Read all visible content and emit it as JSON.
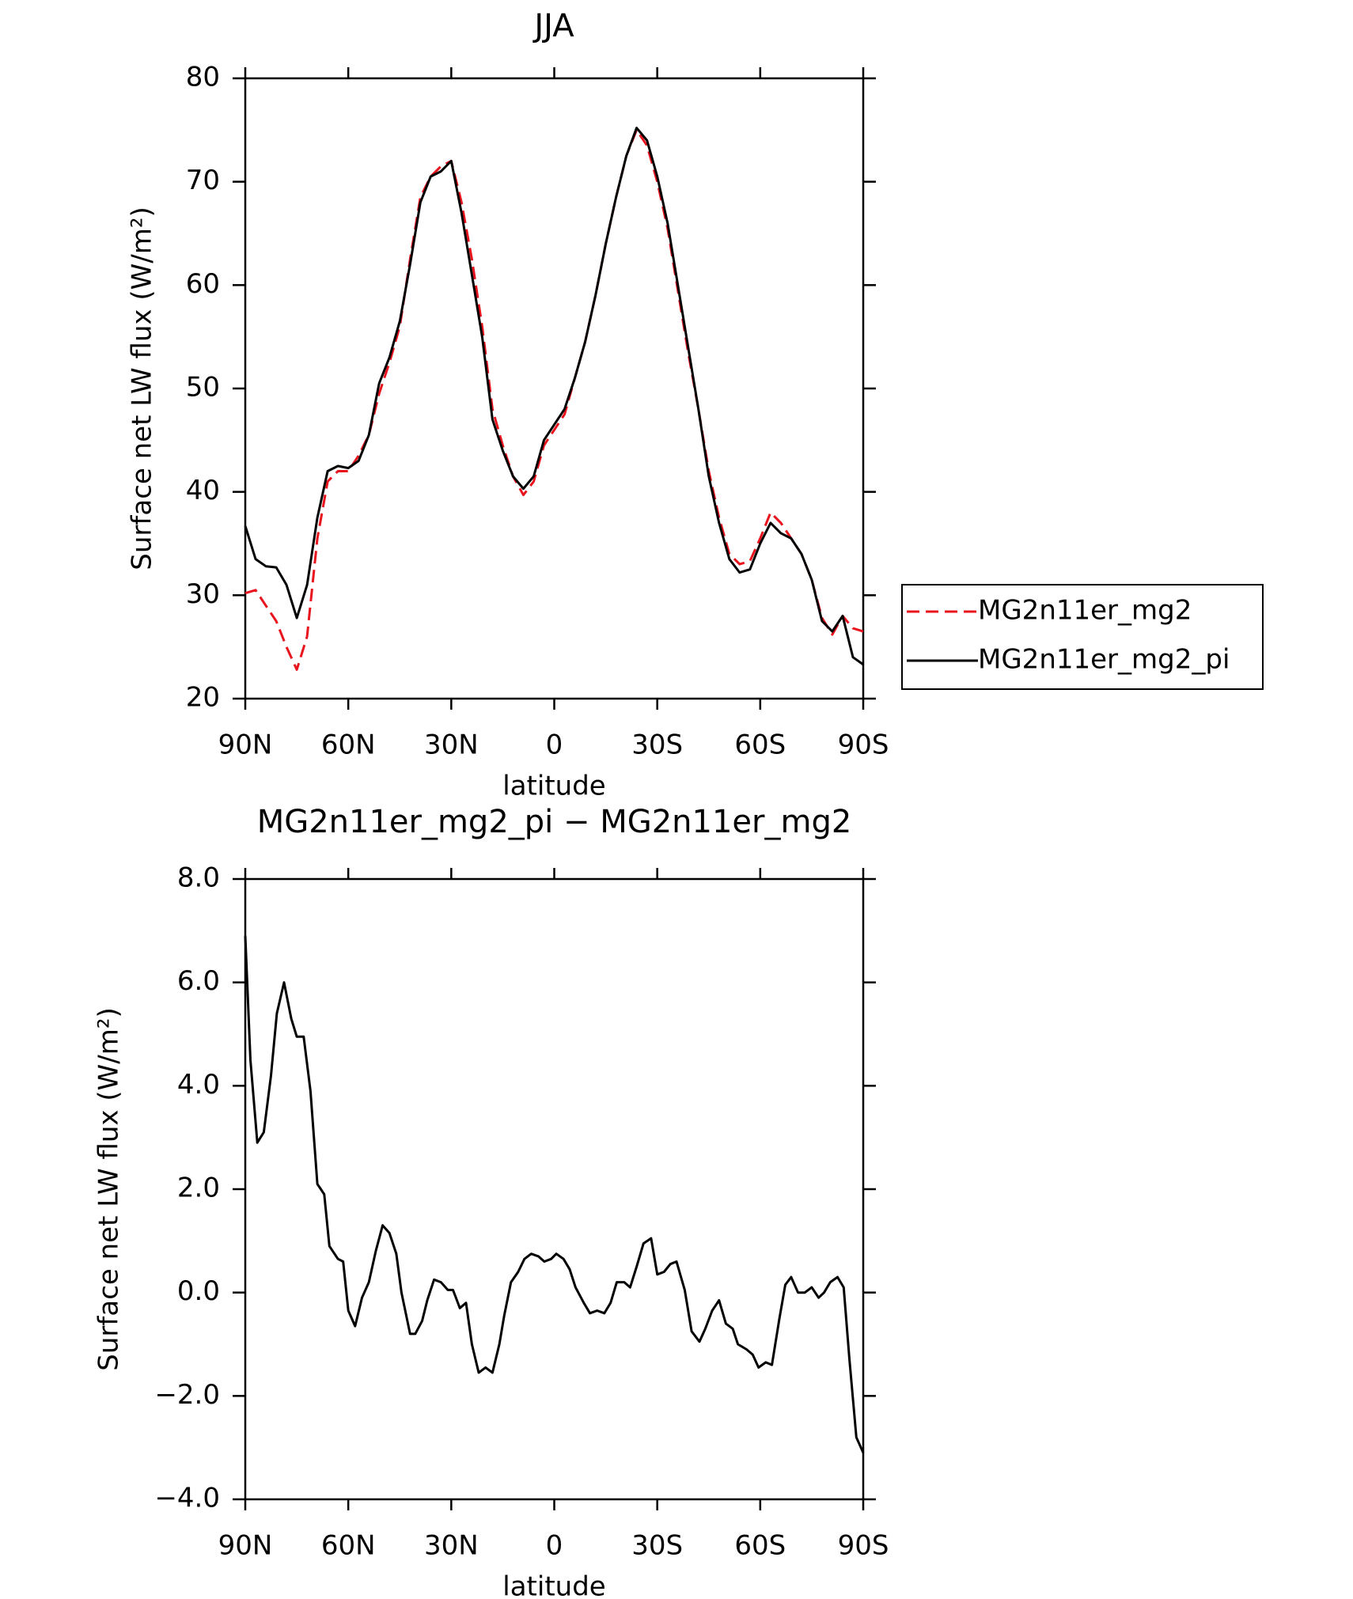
{
  "chart_data": [
    {
      "type": "line",
      "title": "JJA",
      "xlabel": "latitude",
      "ylabel": "Surface net LW flux (W/m²)",
      "x": [
        90,
        87,
        84,
        81,
        78,
        75,
        72,
        69,
        66,
        63,
        60,
        57,
        54,
        51,
        48,
        45,
        42,
        39,
        36,
        33,
        30,
        27,
        24,
        21,
        18,
        15,
        12,
        9,
        6,
        3,
        0,
        -3,
        -6,
        -9,
        -12,
        -15,
        -18,
        -21,
        -24,
        -27,
        -30,
        -33,
        -36,
        -39,
        -42,
        -45,
        -48,
        -51,
        -54,
        -57,
        -60,
        -63,
        -66,
        -69,
        -72,
        -75,
        -78,
        -81,
        -84,
        -87,
        -90
      ],
      "series": [
        {
          "name": "MG2n11er_mg2",
          "color": "#e8141e",
          "dash": true,
          "values": [
            30.2,
            30.5,
            29,
            27.5,
            25,
            22.8,
            26,
            35.5,
            41,
            42,
            42,
            43.5,
            45.5,
            49.5,
            52.5,
            56,
            62.5,
            68.5,
            70.5,
            71.5,
            72,
            68,
            62.5,
            56,
            48,
            44.5,
            41.5,
            39.7,
            41,
            44.5,
            46,
            47.5,
            51,
            54.5,
            59,
            64,
            68.5,
            72.5,
            75,
            73.5,
            70,
            65.5,
            59.5,
            53.5,
            48,
            42,
            37.5,
            34,
            33,
            33.3,
            35.5,
            38,
            37,
            35.5,
            34,
            31.5,
            27.8,
            26.2,
            28,
            26.8,
            26.5
          ]
        },
        {
          "name": "MG2n11er_mg2_pi",
          "color": "#000000",
          "dash": false,
          "values": [
            36.7,
            33.5,
            32.8,
            32.7,
            31,
            27.8,
            31,
            37.5,
            42,
            42.5,
            42.3,
            43,
            45.5,
            50.5,
            53,
            56.5,
            62,
            68,
            70.5,
            71,
            72,
            67,
            61,
            55,
            47,
            44,
            41.5,
            40.3,
            41.5,
            45,
            46.5,
            48,
            51,
            54.5,
            59,
            64,
            68.5,
            72.5,
            75.2,
            74,
            70.5,
            66,
            60,
            54,
            48,
            41.5,
            37,
            33.5,
            32.2,
            32.5,
            35,
            37,
            36,
            35.5,
            34,
            31.5,
            27.5,
            26.5,
            28,
            24,
            23.3
          ]
        }
      ],
      "xlim": [
        90,
        -90
      ],
      "xticks": [
        {
          "value": 90,
          "label": "90N"
        },
        {
          "value": 60,
          "label": "60N"
        },
        {
          "value": 30,
          "label": "30N"
        },
        0,
        {
          "value": -30,
          "label": "30S"
        },
        {
          "value": -60,
          "label": "60S"
        },
        {
          "value": -90,
          "label": "90S"
        }
      ],
      "ylim": [
        20,
        80
      ],
      "yticks": [
        20,
        30,
        40,
        50,
        60,
        70,
        80
      ]
    },
    {
      "type": "line",
      "title": "MG2n11er_mg2_pi − MG2n11er_mg2",
      "xlabel": "latitude",
      "ylabel": "Surface net LW flux (W/m²)",
      "x": [
        90,
        88.5,
        86.5,
        84.6,
        82.5,
        80.8,
        78.7,
        76.6,
        75,
        73,
        71,
        69,
        67,
        65.5,
        63,
        61.5,
        60,
        58,
        56,
        54,
        52,
        50,
        48,
        46,
        44.5,
        42,
        40.5,
        38.5,
        37,
        35,
        33,
        31,
        29.5,
        27.5,
        25.7,
        24,
        22,
        20,
        18,
        16,
        14.6,
        12.6,
        10.5,
        8.7,
        6.7,
        4.6,
        2.9,
        0.9,
        -0.6,
        -2.7,
        -4.5,
        -6.2,
        -8.6,
        -10.4,
        -12.5,
        -14.6,
        -16.4,
        -18.2,
        -20.4,
        -22.1,
        -24,
        -26,
        -28.2,
        -30,
        -32,
        -33.8,
        -35.6,
        -38,
        -40,
        -42.3,
        -44,
        -46,
        -48,
        -50,
        -52,
        -53.5,
        -56,
        -57.8,
        -59.5,
        -61.6,
        -63.4,
        -65.6,
        -67.3,
        -69,
        -71,
        -73,
        -75,
        -77,
        -78.6,
        -80.4,
        -82.5,
        -84.3,
        -86,
        -88,
        -90
      ],
      "color": "#000000",
      "values": [
        6.9,
        4.5,
        2.9,
        3.1,
        4.2,
        5.4,
        6.0,
        5.3,
        4.95,
        4.95,
        3.9,
        2.1,
        1.9,
        0.9,
        0.65,
        0.6,
        -0.35,
        -0.65,
        -0.1,
        0.2,
        0.8,
        1.3,
        1.15,
        0.75,
        0,
        -0.8,
        -0.8,
        -0.55,
        -0.15,
        0.25,
        0.2,
        0.05,
        0.05,
        -0.3,
        -0.2,
        -1.0,
        -1.55,
        -1.45,
        -1.55,
        -1.0,
        -0.45,
        0.2,
        0.4,
        0.65,
        0.75,
        0.7,
        0.6,
        0.65,
        0.75,
        0.65,
        0.45,
        0.1,
        -0.2,
        -0.4,
        -0.35,
        -0.4,
        -0.2,
        0.2,
        0.2,
        0.1,
        0.5,
        0.95,
        1.05,
        0.35,
        0.4,
        0.55,
        0.6,
        0.05,
        -0.75,
        -0.95,
        -0.7,
        -0.35,
        -0.15,
        -0.6,
        -0.7,
        -1.0,
        -1.1,
        -1.2,
        -1.45,
        -1.35,
        -1.4,
        -0.5,
        0.15,
        0.3,
        0,
        0,
        0.1,
        -0.1,
        0,
        0.2,
        0.3,
        0.1,
        -1.3,
        -2.8,
        -3.1
      ],
      "xlim": [
        90,
        -90
      ],
      "xticks": [
        {
          "value": 90,
          "label": "90N"
        },
        {
          "value": 60,
          "label": "60N"
        },
        {
          "value": 30,
          "label": "30N"
        },
        0,
        {
          "value": -30,
          "label": "30S"
        },
        {
          "value": -60,
          "label": "60S"
        },
        {
          "value": -90,
          "label": "90S"
        }
      ],
      "ylim": [
        -4,
        8
      ],
      "yticks": [
        {
          "value": -4,
          "label": "−4.0"
        },
        {
          "value": -2,
          "label": "−2.0"
        },
        {
          "value": 0,
          "label": "0.0"
        },
        {
          "value": 2,
          "label": "2.0"
        },
        {
          "value": 4,
          "label": "4.0"
        },
        {
          "value": 6,
          "label": "6.0"
        },
        {
          "value": 8,
          "label": "8.0"
        }
      ]
    }
  ]
}
